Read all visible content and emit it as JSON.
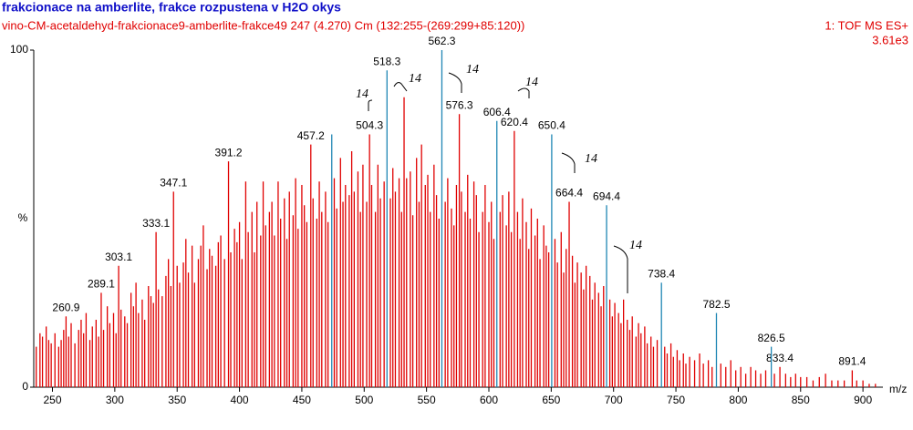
{
  "chart_data": {
    "type": "stem",
    "title": "frakcionace na amberlite, frakce rozpustena v H2O okys",
    "subtitle": "vino-CM-acetaldehyd-frakcionace9-amberlite-frakce49 247 (4.270) Cm (132:255-(269:299+85:120))",
    "instrument": "1: TOF MS ES+",
    "intensity": "3.61e3",
    "x_label": "m/z",
    "y_label": "%",
    "xlim": [
      235,
      916
    ],
    "ylim": [
      0,
      100
    ],
    "xticks": [
      250,
      300,
      350,
      400,
      450,
      500,
      550,
      600,
      650,
      700,
      750,
      800,
      850,
      900
    ],
    "yticks": [
      0,
      100
    ],
    "annotations": [
      "14",
      "14",
      "14",
      "14",
      "14",
      "14"
    ],
    "series": [
      {
        "color": "#e00000",
        "labeled": false,
        "x": [
          237,
          240,
          242,
          245,
          247,
          249,
          252,
          255,
          257,
          259,
          263,
          265,
          268,
          271,
          273,
          275,
          277,
          280,
          282,
          285,
          287,
          291,
          294,
          296,
          299,
          301,
          305,
          308,
          310,
          313,
          315,
          317,
          319,
          322,
          324,
          327,
          329,
          331,
          335,
          338,
          341,
          343,
          345,
          350,
          352,
          355,
          357,
          359,
          362,
          364,
          367,
          369,
          371,
          374,
          376,
          378,
          381,
          383,
          385,
          388,
          393,
          396,
          398,
          400,
          402,
          405,
          407,
          410,
          412,
          414,
          417,
          419,
          421,
          424,
          426,
          428,
          431,
          433,
          436,
          438,
          440,
          443,
          445,
          447,
          450,
          452,
          454,
          459,
          462,
          464,
          466,
          469,
          471,
          476,
          478,
          481,
          483,
          485,
          488,
          490,
          492,
          495,
          497,
          499,
          502,
          506,
          509,
          511,
          513,
          516,
          521,
          523,
          525,
          528,
          530,
          532,
          534,
          537,
          539,
          542,
          544,
          546,
          549,
          551,
          553,
          556,
          558,
          560,
          565,
          567,
          570,
          572,
          574,
          578,
          581,
          583,
          585,
          588,
          590,
          592,
          595,
          597,
          600,
          602,
          604,
          609,
          611,
          614,
          616,
          618,
          623,
          625,
          627,
          630,
          632,
          634,
          637,
          639,
          641,
          644,
          646,
          648,
          653,
          655,
          658,
          660,
          662,
          667,
          669,
          671,
          674,
          676,
          678,
          681,
          683,
          685,
          688,
          690,
          692,
          697,
          699,
          701,
          704,
          706,
          708,
          711,
          713,
          715,
          718,
          720,
          722,
          725,
          727,
          730,
          732,
          735,
          741,
          743,
          746,
          748,
          751,
          753,
          756,
          758,
          761,
          765,
          769,
          772,
          776,
          779,
          786,
          790,
          794,
          798,
          802,
          806,
          810,
          814,
          818,
          822,
          829,
          838,
          842,
          846,
          850,
          855,
          860,
          865,
          870,
          875,
          880,
          885,
          895,
          900,
          905,
          910
        ],
        "values": [
          12,
          16,
          15,
          18,
          14,
          13,
          16,
          12,
          14,
          17,
          15,
          19,
          13,
          17,
          20,
          16,
          22,
          14,
          18,
          20,
          15,
          17,
          24,
          19,
          22,
          16,
          23,
          21,
          19,
          28,
          24,
          31,
          22,
          26,
          20,
          30,
          27,
          25,
          29,
          27,
          33,
          38,
          30,
          36,
          31,
          37,
          44,
          34,
          42,
          31,
          38,
          42,
          48,
          35,
          41,
          39,
          36,
          43,
          45,
          38,
          40,
          47,
          43,
          49,
          38,
          61,
          46,
          52,
          40,
          55,
          45,
          61,
          48,
          52,
          55,
          45,
          61,
          50,
          56,
          44,
          58,
          51,
          62,
          47,
          60,
          54,
          49,
          56,
          50,
          61,
          52,
          58,
          49,
          62,
          53,
          68,
          55,
          60,
          57,
          70,
          58,
          64,
          52,
          66,
          55,
          60,
          52,
          66,
          56,
          61,
          56,
          65,
          58,
          62,
          52,
          86,
          62,
          64,
          51,
          68,
          55,
          72,
          60,
          63,
          52,
          66,
          57,
          50,
          55,
          62,
          53,
          48,
          60,
          58,
          52,
          63,
          50,
          61,
          57,
          46,
          52,
          60,
          49,
          55,
          44,
          52,
          57,
          48,
          58,
          46,
          52,
          44,
          56,
          49,
          41,
          53,
          45,
          50,
          38,
          48,
          42,
          40,
          44,
          37,
          46,
          34,
          41,
          39,
          31,
          37,
          34,
          29,
          36,
          33,
          26,
          31,
          28,
          24,
          30,
          26,
          21,
          25,
          22,
          19,
          26,
          20,
          17,
          21,
          15,
          19,
          16,
          18,
          13,
          15,
          12,
          14,
          12,
          10,
          13,
          9,
          11,
          8,
          10,
          7,
          9,
          8,
          10,
          7,
          8,
          6,
          7,
          6,
          8,
          5,
          6,
          4,
          6,
          5,
          4,
          5,
          4,
          4,
          3,
          4,
          3,
          3,
          2,
          3,
          4,
          2,
          2,
          2,
          2,
          2,
          1,
          1
        ]
      },
      {
        "color": "#e00000",
        "labeled": true,
        "x": [
          260.9,
          289.1,
          303.1,
          333.1,
          347.1,
          391.2,
          457.2,
          504.3,
          576.3,
          620.4,
          664.4,
          833.4,
          891.4
        ],
        "values": [
          21,
          28,
          36,
          46,
          58,
          67,
          72,
          75,
          81,
          76,
          55,
          6,
          5
        ]
      },
      {
        "color": "#1f86b4",
        "labeled": false,
        "x": [
          474
        ],
        "values": [
          75
        ]
      },
      {
        "color": "#1f86b4",
        "labeled": true,
        "x": [
          518.3,
          562.3,
          606.4,
          650.4,
          694.4,
          738.4,
          782.5,
          826.5
        ],
        "values": [
          94,
          100,
          79,
          75,
          54,
          31,
          22,
          12
        ]
      }
    ]
  }
}
